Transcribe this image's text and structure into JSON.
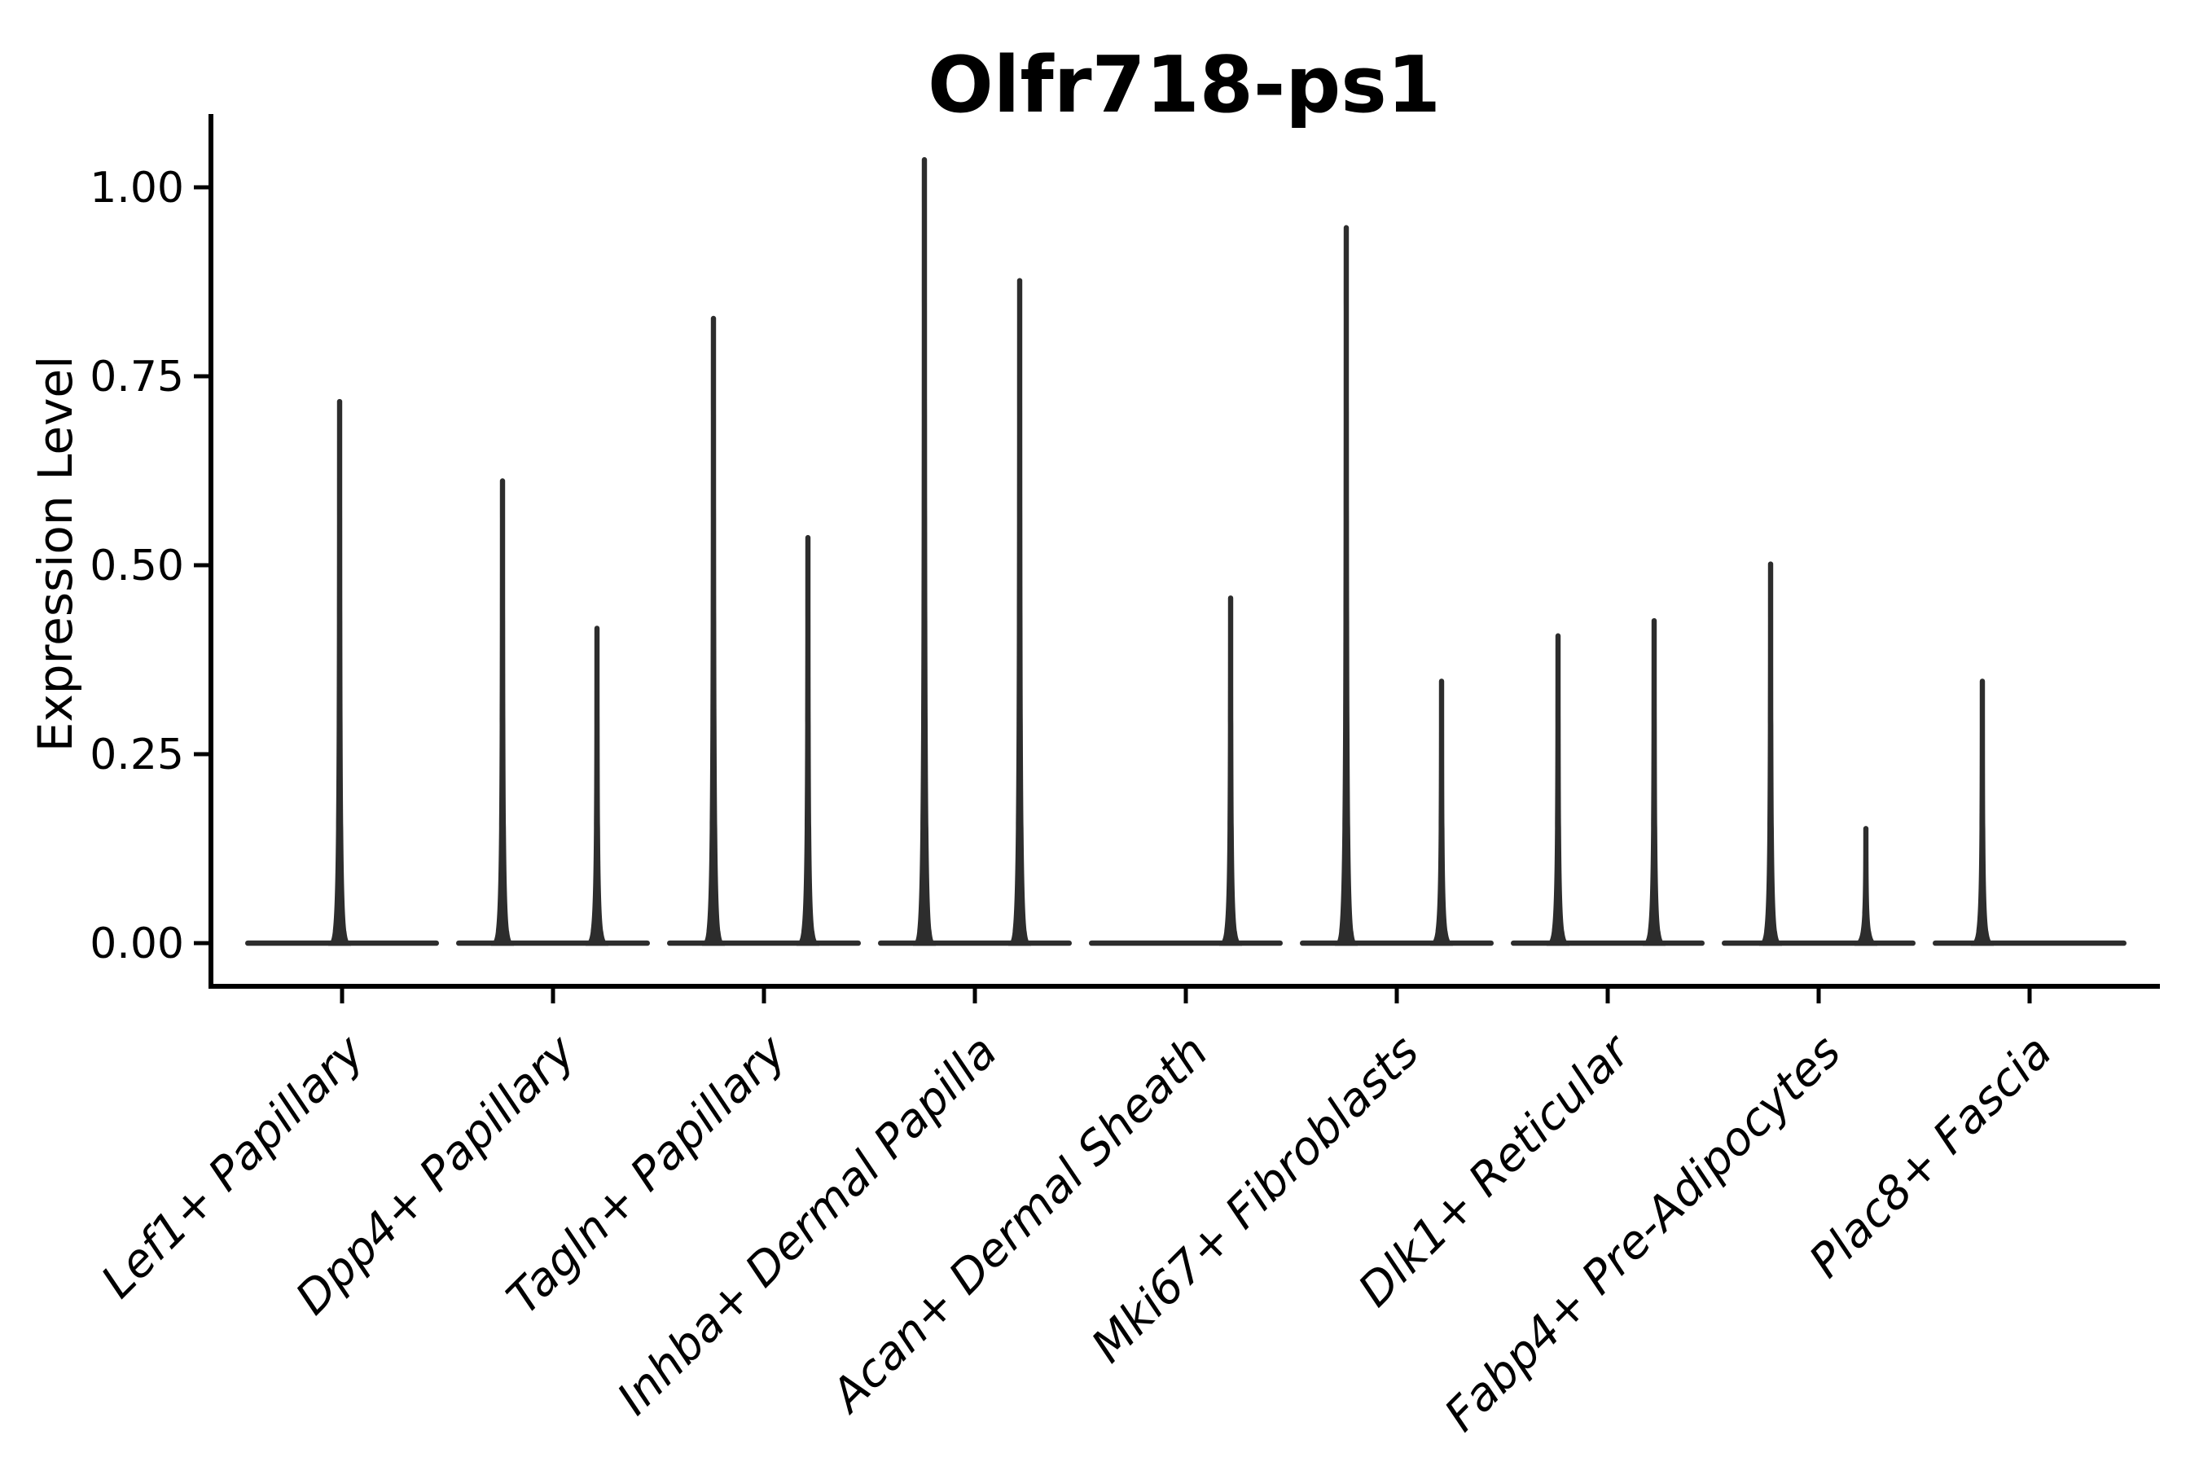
{
  "page": {
    "background": "#ffffff"
  },
  "style": {
    "spine_color": "#000000",
    "tick_color": "#000000",
    "violin_color": "#2d2d2d",
    "text_color": "#000000"
  },
  "chart_data": {
    "type": "violin",
    "title": "Olfr718-ps1",
    "xlabel": "",
    "ylabel": "Expression Level",
    "ylim": [
      -0.06,
      1.09
    ],
    "grid": false,
    "legend": null,
    "yticks": [
      {
        "label": "0.00",
        "value": 0.0
      },
      {
        "label": "0.25",
        "value": 0.25
      },
      {
        "label": "0.50",
        "value": 0.5
      },
      {
        "label": "0.75",
        "value": 0.75
      },
      {
        "label": "1.00",
        "value": 1.0
      }
    ],
    "categories": [
      "Lef1+ Papillary",
      "Dpp4+ Papillary",
      "Tagln+ Papillary",
      "Inhba+ Dermal Papilla",
      "Acan+ Dermal Sheath",
      "Mki67+ Fibroblasts",
      "Dlk1+ Reticular",
      "Fabp4+ Pre-Adipocytes",
      "Plac8+ Fascia"
    ],
    "violins": [
      {
        "category": "Lef1+ Papillary",
        "bulk_value": 0.0,
        "needles": [
          {
            "value": 0.72,
            "x_offset": -3
          }
        ]
      },
      {
        "category": "Dpp4+ Papillary",
        "bulk_value": 0.0,
        "needles": [
          {
            "value": 0.615,
            "x_offset": -62
          },
          {
            "value": 0.42,
            "x_offset": 54
          }
        ]
      },
      {
        "category": "Tagln+ Papillary",
        "bulk_value": 0.0,
        "needles": [
          {
            "value": 0.83,
            "x_offset": -62
          },
          {
            "value": 0.54,
            "x_offset": 54
          }
        ]
      },
      {
        "category": "Inhba+ Dermal Papilla",
        "bulk_value": 0.0,
        "needles": [
          {
            "value": 1.04,
            "x_offset": -62
          },
          {
            "value": 0.88,
            "x_offset": 55
          }
        ]
      },
      {
        "category": "Acan+ Dermal Sheath",
        "bulk_value": 0.0,
        "needles": [
          {
            "value": 0.46,
            "x_offset": 55
          }
        ]
      },
      {
        "category": "Mki67+ Fibroblasts",
        "bulk_value": 0.0,
        "needles": [
          {
            "value": 0.95,
            "x_offset": -62
          },
          {
            "value": 0.35,
            "x_offset": 55
          }
        ]
      },
      {
        "category": "Dlk1+ Reticular",
        "bulk_value": 0.0,
        "needles": [
          {
            "value": 0.41,
            "x_offset": -61
          },
          {
            "value": 0.43,
            "x_offset": 57
          }
        ]
      },
      {
        "category": "Fabp4+ Pre-Adipocytes",
        "bulk_value": 0.0,
        "needles": [
          {
            "value": 0.505,
            "x_offset": -59
          },
          {
            "value": 0.155,
            "x_offset": 58
          }
        ]
      },
      {
        "category": "Plac8+ Fascia",
        "bulk_value": 0.0,
        "needles": [
          {
            "value": 0.35,
            "x_offset": -58
          }
        ]
      }
    ]
  }
}
